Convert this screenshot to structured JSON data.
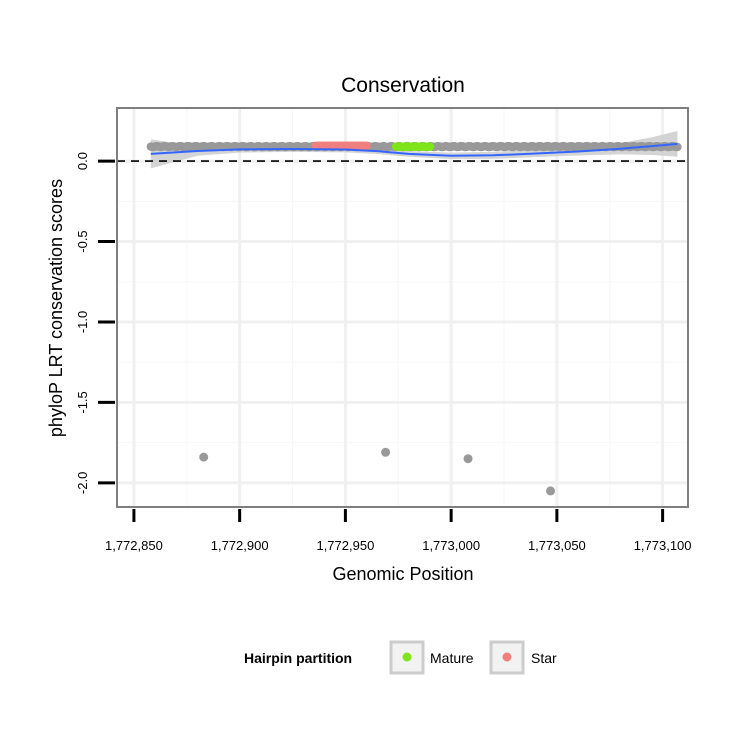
{
  "chart_data": {
    "type": "scatter",
    "title": "Conservation",
    "xlabel": "Genomic Position",
    "ylabel": "phyloP LRT conservation scores",
    "xlim": [
      1772842,
      1773112
    ],
    "ylim": [
      -2.15,
      0.33
    ],
    "x_ticks": [
      1772850,
      1772900,
      1772950,
      1773000,
      1773050,
      1773100
    ],
    "x_tick_labels": [
      "1,772,850",
      "1,772,900",
      "1,772,950",
      "1,773,000",
      "1,773,050",
      "1,773,100"
    ],
    "y_ticks": [
      0.0,
      -0.5,
      -1.0,
      -1.5,
      -2.0
    ],
    "y_tick_labels": [
      "0.0",
      "-0.5",
      "-1.0",
      "-1.5",
      "-2.0"
    ],
    "grid": true,
    "reference_line": {
      "y": 0,
      "style": "dashed"
    },
    "series": [
      {
        "name": "Mature",
        "color": "#7FE51A",
        "x_range": [
          1772974,
          1772990
        ],
        "y": 0.09
      },
      {
        "name": "Star",
        "color": "#F08080",
        "x_range": [
          1772936,
          1772960
        ],
        "y": 0.095
      },
      {
        "color": "#999999",
        "band_x_range": [
          1772858,
          1773107
        ],
        "band_y": 0.09,
        "outliers": [
          {
            "x": 1772883,
            "y": -1.84
          },
          {
            "x": 1772969,
            "y": -1.81
          },
          {
            "x": 1773008,
            "y": -1.85
          },
          {
            "x": 1773047,
            "y": -2.05
          }
        ]
      }
    ],
    "smooth": {
      "color": "#3366FF",
      "ci_color": "#CCCCCC",
      "points": [
        {
          "x": 1772858,
          "y": 0.045,
          "se": 0.09
        },
        {
          "x": 1772880,
          "y": 0.063,
          "se": 0.03
        },
        {
          "x": 1772900,
          "y": 0.073,
          "se": 0.02
        },
        {
          "x": 1772925,
          "y": 0.075,
          "se": 0.018
        },
        {
          "x": 1772950,
          "y": 0.072,
          "se": 0.018
        },
        {
          "x": 1772965,
          "y": 0.062,
          "se": 0.018
        },
        {
          "x": 1772980,
          "y": 0.045,
          "se": 0.018
        },
        {
          "x": 1773000,
          "y": 0.033,
          "se": 0.02
        },
        {
          "x": 1773020,
          "y": 0.036,
          "se": 0.022
        },
        {
          "x": 1773040,
          "y": 0.047,
          "se": 0.022
        },
        {
          "x": 1773060,
          "y": 0.06,
          "se": 0.025
        },
        {
          "x": 1773080,
          "y": 0.077,
          "se": 0.035
        },
        {
          "x": 1773095,
          "y": 0.093,
          "se": 0.055
        },
        {
          "x": 1773107,
          "y": 0.107,
          "se": 0.08
        }
      ]
    },
    "legend": {
      "title": "Hairpin partition",
      "position": "bottom",
      "items": [
        {
          "label": "Mature",
          "color": "#7FE51A"
        },
        {
          "label": "Star",
          "color": "#F08080"
        }
      ]
    }
  }
}
